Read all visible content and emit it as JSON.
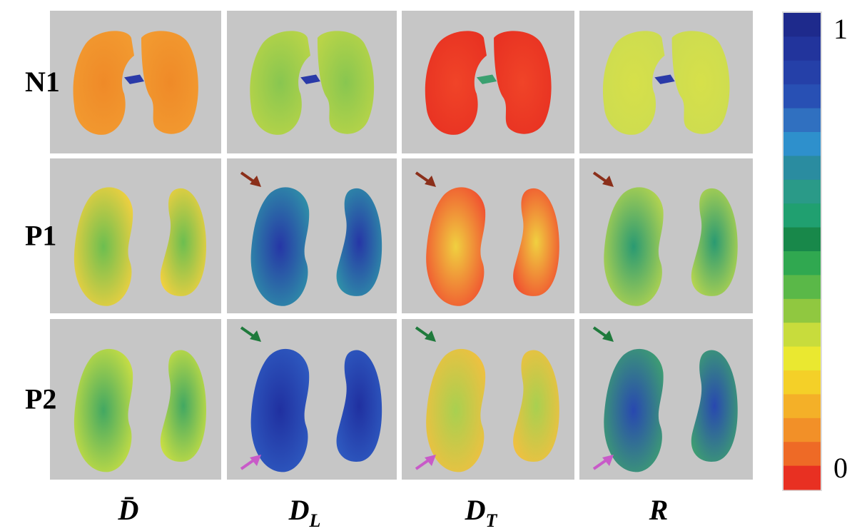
{
  "figure": {
    "rows": [
      "N1",
      "P1",
      "P2"
    ],
    "columns": [
      {
        "symbol": "D̄"
      },
      {
        "symbol": "D",
        "subscript": "L"
      },
      {
        "symbol": "D",
        "subscript": "T"
      },
      {
        "symbol": "R"
      }
    ],
    "colorbar": {
      "ticks": [
        0,
        1
      ]
    }
  }
}
